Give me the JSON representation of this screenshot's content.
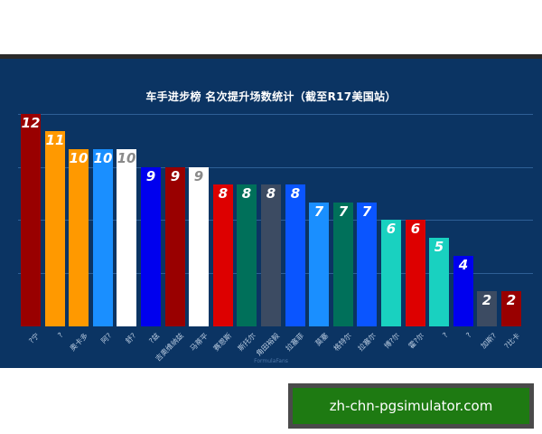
{
  "chart_data": {
    "type": "bar",
    "title": "车手进步榜 名次提升场数统计（截至R17美国站）",
    "xlabel": "",
    "ylabel": "",
    "ylim": [
      0,
      12
    ],
    "grid": true,
    "gridlines_at": [
      3,
      6,
      9,
      12
    ],
    "categories": [
      "?宁",
      "?",
      "奥卡多",
      "阿?",
      "舒?",
      "?兹",
      "吉奥维纳兹",
      "马蒂平",
      "赛恩斯",
      "斯托尔",
      "角田裕毅",
      "拉塞菲",
      "莫塞",
      "格特尔",
      "拉塞尔",
      "博?尔",
      "霍?尔",
      "?",
      "?",
      "加斯?",
      "?比卡"
    ],
    "values": [
      12,
      11,
      10,
      10,
      10,
      9,
      9,
      9,
      8,
      8,
      8,
      8,
      7,
      7,
      7,
      6,
      6,
      5,
      4,
      2,
      2
    ],
    "colors": [
      "#990000",
      "#ff9900",
      "#ff9900",
      "#1a8fff",
      "#ffffff",
      "#0000ee",
      "#990000",
      "#ffffff",
      "#dd0000",
      "#00705a",
      "#3c4b62",
      "#0a55ff",
      "#1a8fff",
      "#00705a",
      "#0a55ff",
      "#19d1c0",
      "#dd0000",
      "#19d1c0",
      "#0000ee",
      "#3c4b62",
      "#990000"
    ],
    "label_colors": [
      "#ffffff",
      "#ffffff",
      "#ffffff",
      "#ffffff",
      "#8a8a8a",
      "#ffffff",
      "#ffffff",
      "#8a8a8a",
      "#ffffff",
      "#ffffff",
      "#ffffff",
      "#ffffff",
      "#ffffff",
      "#ffffff",
      "#ffffff",
      "#ffffff",
      "#ffffff",
      "#ffffff",
      "#ffffff",
      "#ffffff",
      "#ffffff"
    ],
    "legend": null
  },
  "credit": "FormulaFans",
  "watermark": "zh-chn-pgsimulator.com",
  "colors": {
    "background": "#0b3463",
    "gridline": "#2e5f96",
    "watermark_bg": "#1e7a12"
  }
}
